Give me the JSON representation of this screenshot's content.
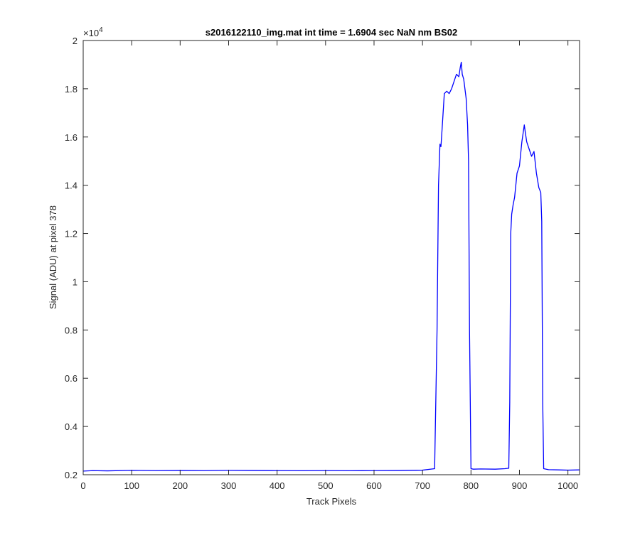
{
  "chart_data": {
    "type": "line",
    "title": "s2016122110_img.mat int time = 1.6904 sec  NaN nm BS02",
    "xlabel": "Track Pixels",
    "ylabel": "Signal (ADU) at pixel 378",
    "xlim": [
      0,
      1024
    ],
    "ylim": [
      2000,
      20000
    ],
    "x_ticks": [
      0,
      100,
      200,
      300,
      400,
      500,
      600,
      700,
      800,
      900,
      1000
    ],
    "x_tick_labels": [
      "0",
      "100",
      "200",
      "300",
      "400",
      "500",
      "600",
      "700",
      "800",
      "900",
      "1000"
    ],
    "y_ticks": [
      2000,
      4000,
      6000,
      8000,
      10000,
      12000,
      14000,
      16000,
      18000,
      20000
    ],
    "y_tick_labels": [
      "0.2",
      "0.4",
      "0.6",
      "0.8",
      "1",
      "1.2",
      "1.4",
      "1.6",
      "1.8",
      "2"
    ],
    "y_exponent_base": "×10",
    "y_exponent_power": "4",
    "grid": false,
    "legend": "none",
    "colors": {
      "line": "#0000ff",
      "axes": "#262626"
    },
    "series": [
      {
        "x": [
          0,
          20,
          50,
          100,
          150,
          200,
          250,
          300,
          350,
          400,
          450,
          500,
          550,
          600,
          650,
          700,
          725,
          730,
          733,
          736,
          738,
          740,
          745,
          750,
          755,
          760,
          765,
          770,
          775,
          778,
          780,
          782,
          785,
          790,
          793,
          795,
          797,
          800,
          805,
          820,
          850,
          870,
          878,
          880,
          882,
          884,
          887,
          890,
          895,
          900,
          905,
          910,
          912,
          915,
          920,
          925,
          930,
          935,
          940,
          944,
          946,
          948,
          950,
          960,
          980,
          1000,
          1024
        ],
        "y": [
          2150,
          2170,
          2160,
          2180,
          2170,
          2175,
          2170,
          2180,
          2175,
          2170,
          2165,
          2170,
          2165,
          2170,
          2175,
          2190,
          2250,
          8000,
          14000,
          15700,
          15600,
          16200,
          17800,
          17900,
          17800,
          18000,
          18300,
          18600,
          18500,
          18900,
          19100,
          18600,
          18400,
          17600,
          16500,
          15000,
          8000,
          2250,
          2230,
          2240,
          2230,
          2250,
          2270,
          5000,
          12000,
          12800,
          13200,
          13500,
          14500,
          14800,
          15800,
          16500,
          16200,
          15800,
          15500,
          15200,
          15400,
          14500,
          13900,
          13700,
          12500,
          5000,
          2250,
          2210,
          2200,
          2190,
          2200
        ]
      }
    ]
  }
}
